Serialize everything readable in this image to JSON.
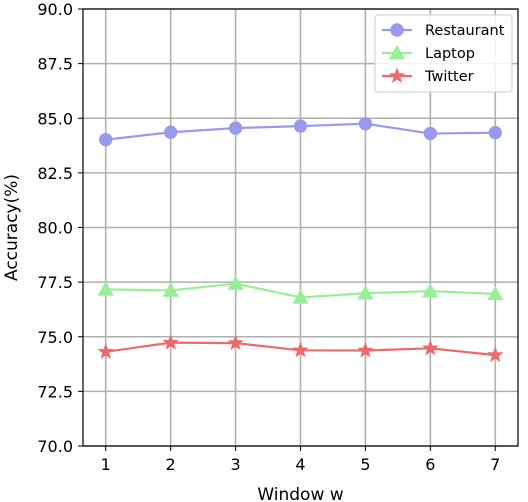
{
  "chart_data": {
    "type": "line",
    "xlabel": "Window w",
    "ylabel": "Accuracy(%)",
    "x": [
      1,
      2,
      3,
      4,
      5,
      6,
      7
    ],
    "xlim": [
      0.65,
      7.35
    ],
    "ylim": [
      70.0,
      90.0
    ],
    "xticks": [
      "1",
      "2",
      "3",
      "4",
      "5",
      "6",
      "7"
    ],
    "yticks": [
      "70.0",
      "72.5",
      "75.0",
      "77.5",
      "80.0",
      "82.5",
      "85.0",
      "87.5",
      "90.0"
    ],
    "grid": true,
    "legend_position": "top-right",
    "series": [
      {
        "name": "Restaurant",
        "color": "#9999ee",
        "marker": "circle",
        "values": [
          84.02,
          84.36,
          84.55,
          84.64,
          84.75,
          84.3,
          84.34
        ]
      },
      {
        "name": "Laptop",
        "color": "#99ee99",
        "marker": "triangle",
        "values": [
          77.17,
          77.12,
          77.43,
          76.8,
          76.99,
          77.09,
          76.96
        ]
      },
      {
        "name": "Twitter",
        "color": "#ee6a6a",
        "marker": "star",
        "values": [
          74.31,
          74.73,
          74.71,
          74.38,
          74.37,
          74.47,
          74.16
        ]
      }
    ]
  }
}
